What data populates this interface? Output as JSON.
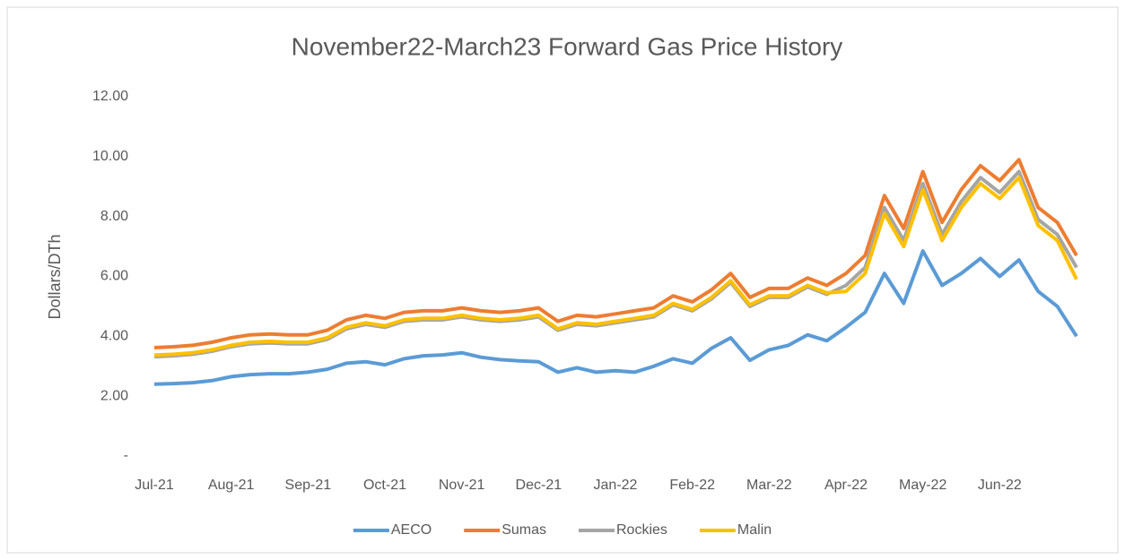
{
  "chart_data": {
    "type": "line",
    "title": "November22-March23 Forward Gas Price History",
    "y_label": "Dollars/DTh",
    "categories": [
      "Jul-21",
      null,
      null,
      null,
      "Aug-21",
      null,
      null,
      null,
      "Sep-21",
      null,
      null,
      null,
      "Oct-21",
      null,
      null,
      null,
      "Nov-21",
      null,
      null,
      null,
      "Dec-21",
      null,
      null,
      null,
      "Jan-22",
      null,
      null,
      null,
      "Feb-22",
      null,
      null,
      null,
      "Mar-22",
      null,
      null,
      null,
      "Apr-22",
      null,
      null,
      null,
      "May-22",
      null,
      null,
      null,
      "Jun-22",
      null,
      null,
      null,
      null
    ],
    "series": [
      {
        "name": "AECO",
        "color": "#5b9bd5",
        "values": [
          2.4,
          2.42,
          2.45,
          2.52,
          2.65,
          2.72,
          2.75,
          2.75,
          2.8,
          2.9,
          3.1,
          3.15,
          3.05,
          3.25,
          3.35,
          3.38,
          3.45,
          3.3,
          3.22,
          3.18,
          3.15,
          2.8,
          2.95,
          2.8,
          2.85,
          2.8,
          3.0,
          3.25,
          3.1,
          3.6,
          3.95,
          3.2,
          3.55,
          3.7,
          4.05,
          3.85,
          4.3,
          4.8,
          6.1,
          5.1,
          6.85,
          5.7,
          6.1,
          6.6,
          6.0,
          6.55,
          5.5,
          5.0,
          4.0
        ]
      },
      {
        "name": "Sumas",
        "color": "#ed7d31",
        "values": [
          3.62,
          3.65,
          3.7,
          3.8,
          3.95,
          4.05,
          4.08,
          4.05,
          4.05,
          4.2,
          4.55,
          4.7,
          4.6,
          4.8,
          4.85,
          4.85,
          4.95,
          4.85,
          4.8,
          4.85,
          4.95,
          4.5,
          4.7,
          4.65,
          4.75,
          4.85,
          4.95,
          5.35,
          5.15,
          5.55,
          6.1,
          5.3,
          5.6,
          5.6,
          5.95,
          5.7,
          6.1,
          6.7,
          8.7,
          7.6,
          9.5,
          7.8,
          8.9,
          9.7,
          9.2,
          9.9,
          8.3,
          7.8,
          6.7
        ]
      },
      {
        "name": "Rockies",
        "color": "#a5a5a5",
        "values": [
          3.32,
          3.35,
          3.4,
          3.5,
          3.65,
          3.75,
          3.78,
          3.75,
          3.75,
          3.9,
          4.25,
          4.4,
          4.3,
          4.5,
          4.55,
          4.55,
          4.65,
          4.55,
          4.5,
          4.55,
          4.65,
          4.2,
          4.4,
          4.35,
          4.45,
          4.55,
          4.65,
          5.05,
          4.85,
          5.25,
          5.8,
          5.0,
          5.3,
          5.3,
          5.65,
          5.4,
          5.7,
          6.3,
          8.3,
          7.2,
          9.1,
          7.4,
          8.5,
          9.3,
          8.8,
          9.5,
          7.9,
          7.4,
          6.3
        ]
      },
      {
        "name": "Malin",
        "color": "#ffc000",
        "values": [
          3.37,
          3.4,
          3.45,
          3.55,
          3.7,
          3.8,
          3.83,
          3.8,
          3.8,
          3.95,
          4.3,
          4.45,
          4.35,
          4.55,
          4.6,
          4.6,
          4.7,
          4.6,
          4.55,
          4.6,
          4.7,
          4.25,
          4.45,
          4.4,
          4.5,
          4.6,
          4.7,
          5.1,
          4.9,
          5.3,
          5.85,
          5.05,
          5.35,
          5.35,
          5.7,
          5.45,
          5.5,
          6.1,
          8.1,
          7.0,
          8.9,
          7.2,
          8.3,
          9.1,
          8.6,
          9.3,
          7.7,
          7.2,
          5.9
        ]
      }
    ],
    "ylim": [
      0,
      12
    ],
    "yticks": [
      {
        "value": 0,
        "label": "-"
      },
      {
        "value": 2,
        "label": "2.00"
      },
      {
        "value": 4,
        "label": "4.00"
      },
      {
        "value": 6,
        "label": "6.00"
      },
      {
        "value": 8,
        "label": "8.00"
      },
      {
        "value": 10,
        "label": "10.00"
      },
      {
        "value": 12,
        "label": "12.00"
      }
    ],
    "grid": false,
    "legend": "bottom"
  }
}
